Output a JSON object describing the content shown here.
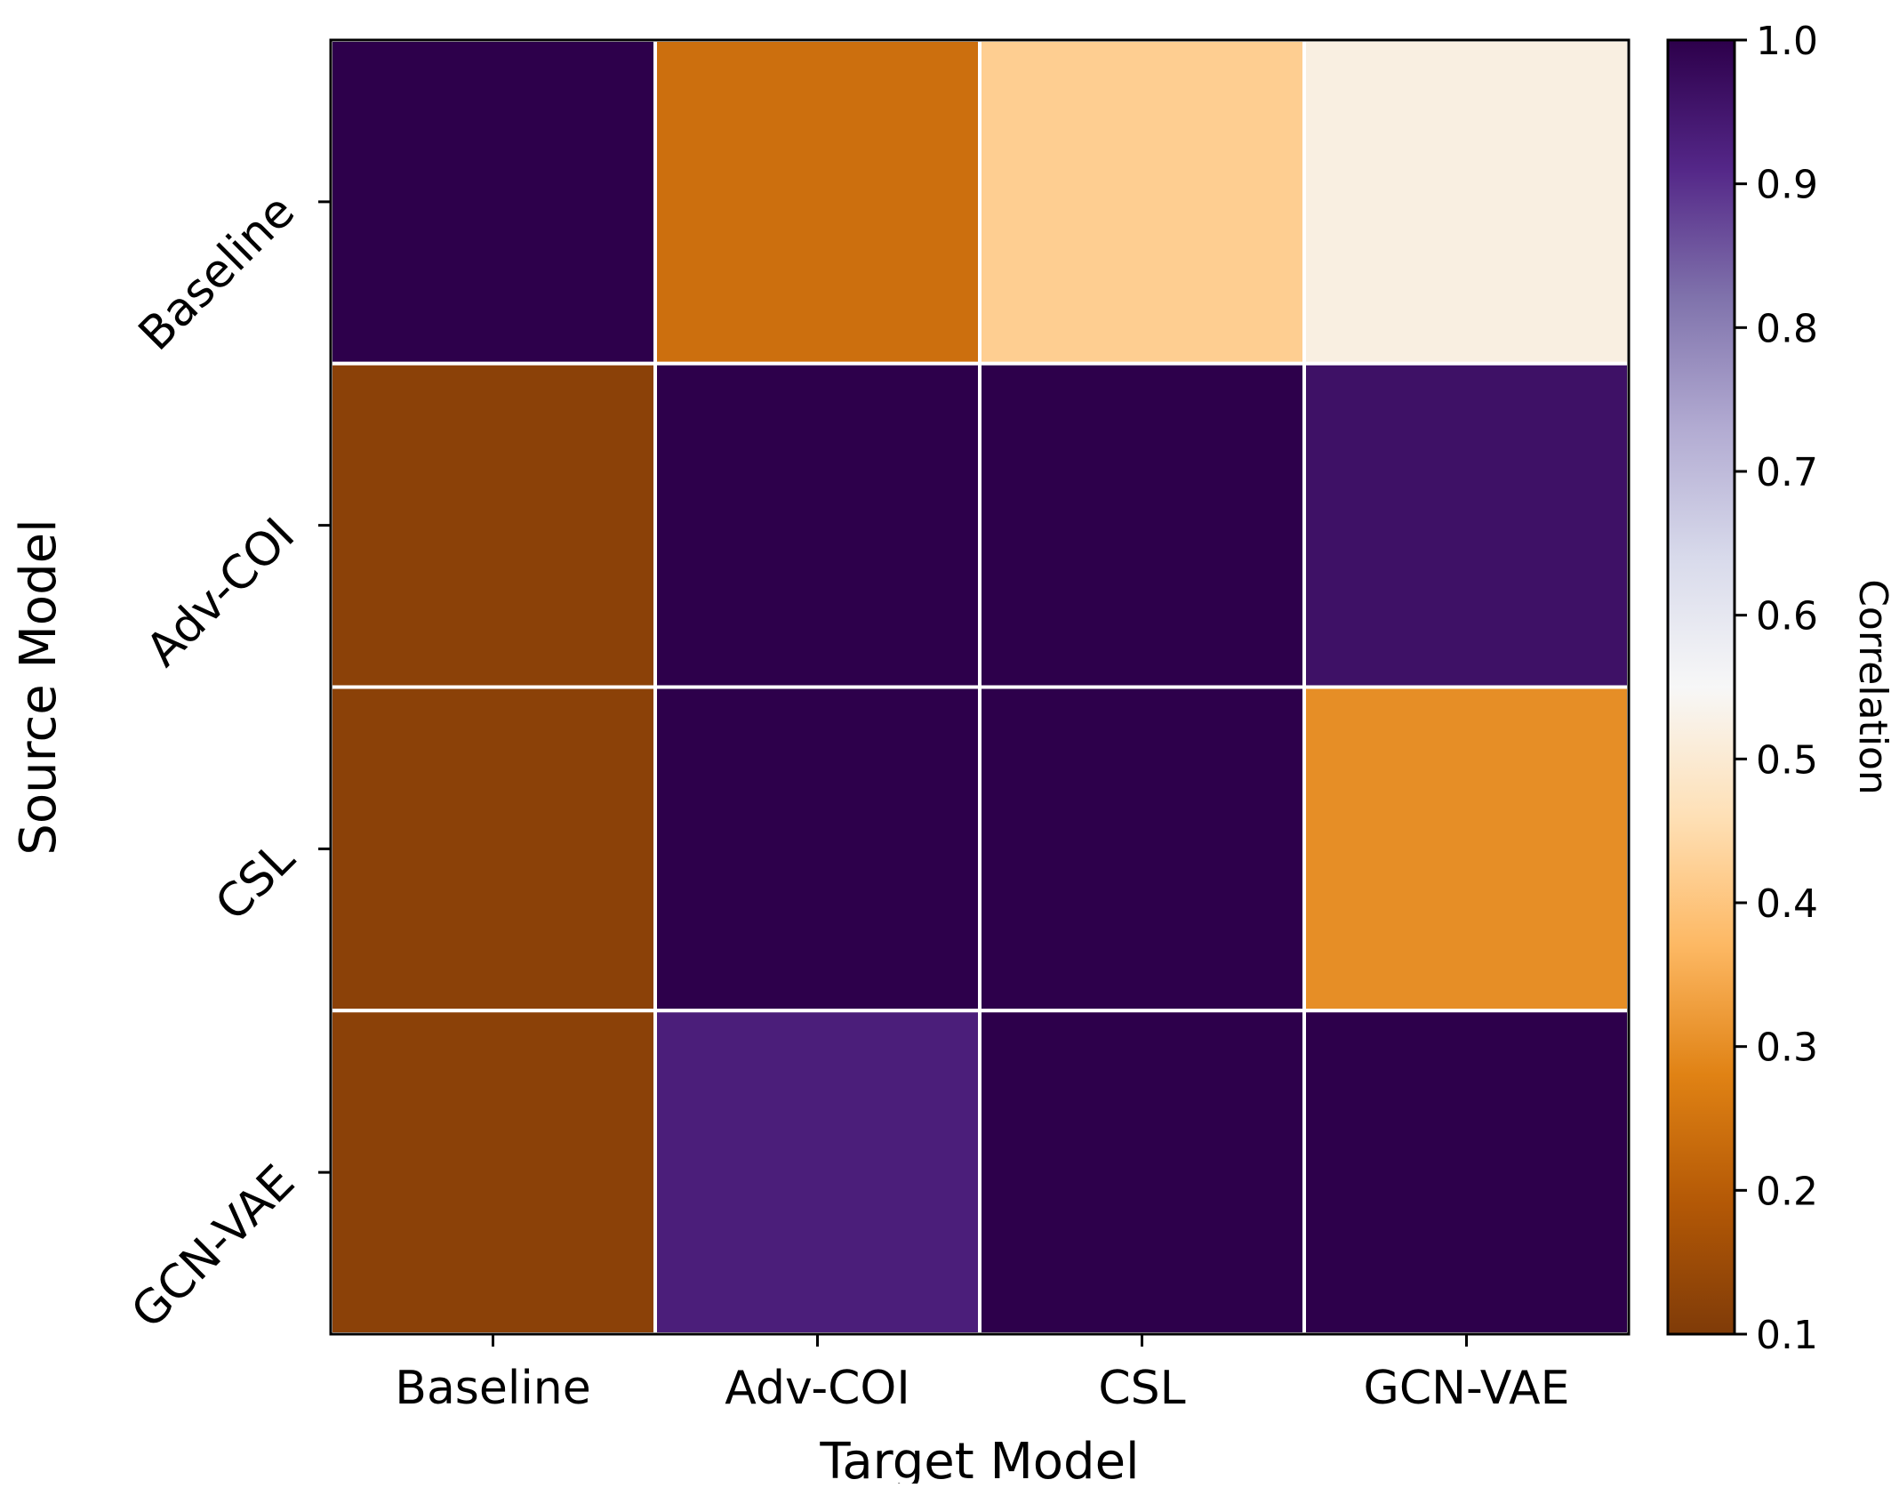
{
  "chart_data": {
    "type": "heatmap",
    "xlabel": "Target Model",
    "ylabel": "Source Model",
    "x_categories": [
      "Baseline",
      "Adv-COI",
      "CSL",
      "GCN-VAE"
    ],
    "y_categories": [
      "Baseline",
      "Adv-COI",
      "CSL",
      "GCN-VAE"
    ],
    "values": [
      [
        1.0,
        0.24,
        0.42,
        0.52
      ],
      [
        0.12,
        1.0,
        1.0,
        0.96
      ],
      [
        0.12,
        1.0,
        1.0,
        0.3
      ],
      [
        0.12,
        0.93,
        1.0,
        1.0
      ]
    ],
    "colorbar": {
      "label": "Correlation",
      "range": [
        0.1,
        1.0
      ],
      "ticks": [
        "0.1",
        "0.2",
        "0.3",
        "0.4",
        "0.5",
        "0.6",
        "0.7",
        "0.8",
        "0.9",
        "1.0"
      ],
      "colormap": "PuOr",
      "stops": [
        "#7f3b08",
        "#b35806",
        "#e08214",
        "#fdb863",
        "#fee0b6",
        "#f7f7f7",
        "#d8daeb",
        "#b2abd2",
        "#8073ac",
        "#542788",
        "#2d004b"
      ]
    },
    "grid": false,
    "cell_border_color": "#ffffff"
  }
}
